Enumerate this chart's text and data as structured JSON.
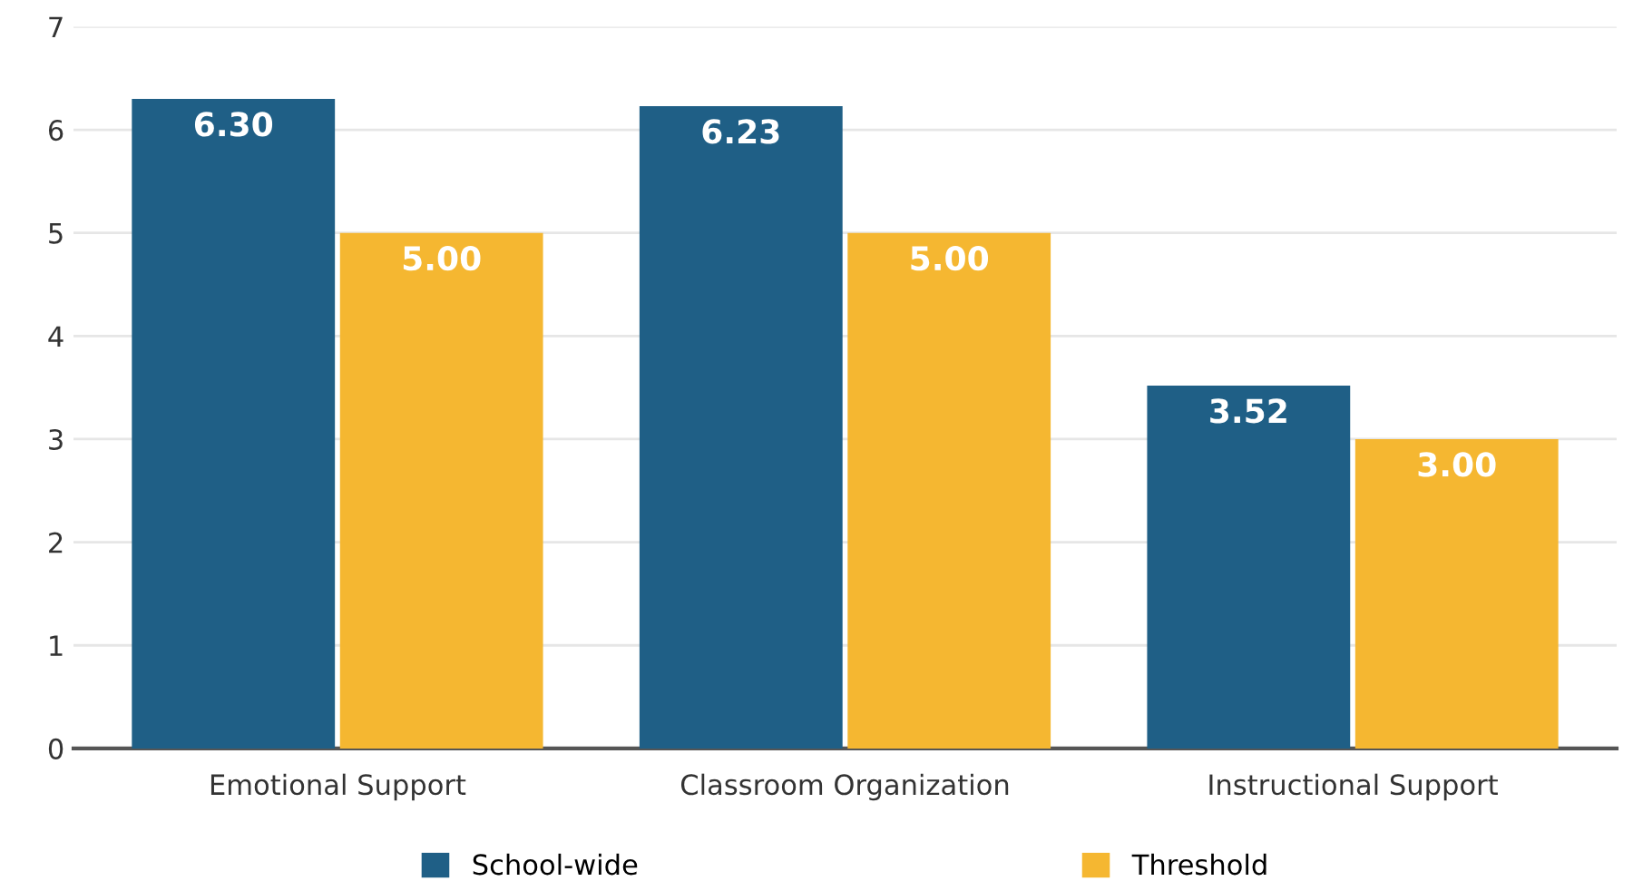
{
  "chart_data": {
    "type": "bar",
    "categories": [
      "Emotional Support",
      "Classroom Organization",
      "Instructional Support"
    ],
    "series": [
      {
        "name": "School-wide",
        "color": "#1f5f86",
        "values": [
          6.3,
          6.23,
          3.52
        ],
        "value_labels": [
          "6.30",
          "6.23",
          "3.52"
        ]
      },
      {
        "name": "Threshold",
        "color": "#f5b731",
        "values": [
          5.0,
          5.0,
          3.0
        ],
        "value_labels": [
          "5.00",
          "5.00",
          "3.00"
        ]
      }
    ],
    "ylim": [
      0,
      7
    ],
    "yticks": [
      0,
      1,
      2,
      3,
      4,
      5,
      6,
      7
    ],
    "grid": "y",
    "legend": "bottom"
  }
}
